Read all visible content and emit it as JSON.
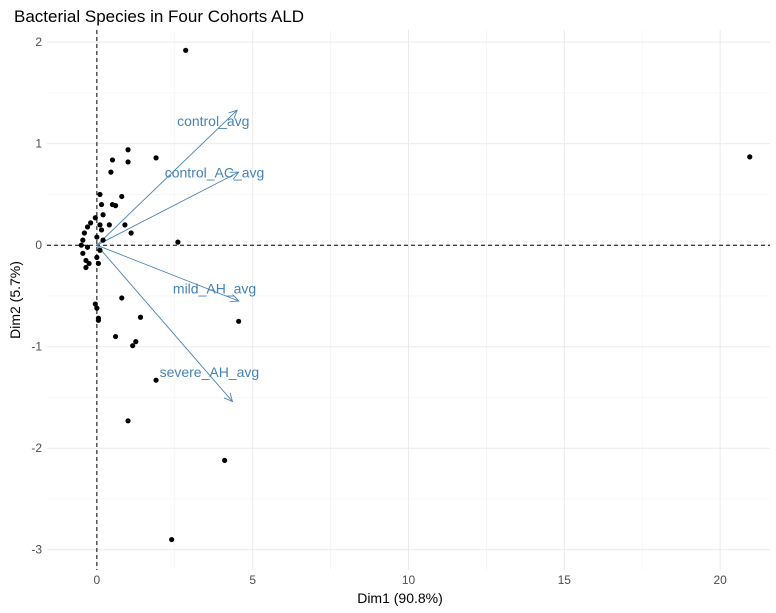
{
  "chart_data": {
    "type": "scatter",
    "title": "Bacterial Species in Four Cohorts ALD",
    "xlabel": "Dim1 (90.8%)",
    "ylabel": "Dim2 (5.7%)",
    "xlim": [
      -1.6,
      21.6
    ],
    "ylim": [
      -3.2,
      2.12
    ],
    "x_ticks": [
      0,
      5,
      10,
      15,
      20
    ],
    "y_ticks": [
      -3,
      -2,
      -1,
      0,
      1,
      2
    ],
    "grid": true,
    "reference_lines": {
      "x": 0,
      "y": 0
    },
    "points_color": "#000000",
    "vector_color": "#4682b4",
    "points": [
      [
        2.85,
        1.92
      ],
      [
        1.0,
        0.94
      ],
      [
        0.5,
        0.84
      ],
      [
        1.9,
        0.86
      ],
      [
        1.0,
        0.82
      ],
      [
        20.95,
        0.87
      ],
      [
        0.45,
        0.72
      ],
      [
        0.1,
        0.5
      ],
      [
        0.8,
        0.48
      ],
      [
        0.15,
        0.4
      ],
      [
        0.5,
        0.4
      ],
      [
        0.6,
        0.39
      ],
      [
        0.2,
        0.3
      ],
      [
        -0.05,
        0.27
      ],
      [
        0.4,
        0.2
      ],
      [
        0.9,
        0.2
      ],
      [
        -0.2,
        0.22
      ],
      [
        0.1,
        0.2
      ],
      [
        0.15,
        0.15
      ],
      [
        1.1,
        0.12
      ],
      [
        -0.3,
        0.18
      ],
      [
        -0.4,
        0.12
      ],
      [
        0.0,
        0.08
      ],
      [
        -0.45,
        0.05
      ],
      [
        0.2,
        0.05
      ],
      [
        2.6,
        0.03
      ],
      [
        -0.5,
        0.0
      ],
      [
        -0.3,
        -0.02
      ],
      [
        0.1,
        -0.05
      ],
      [
        -0.45,
        -0.08
      ],
      [
        -0.35,
        -0.15
      ],
      [
        0.0,
        -0.12
      ],
      [
        -0.25,
        -0.18
      ],
      [
        -0.35,
        -0.22
      ],
      [
        0.05,
        -0.18
      ],
      [
        -0.05,
        -0.58
      ],
      [
        0.0,
        -0.62
      ],
      [
        0.8,
        -0.52
      ],
      [
        0.05,
        -0.72
      ],
      [
        0.05,
        -0.74
      ],
      [
        1.4,
        -0.71
      ],
      [
        4.55,
        -0.75
      ],
      [
        0.6,
        -0.9
      ],
      [
        1.25,
        -0.95
      ],
      [
        1.15,
        -0.99
      ],
      [
        1.9,
        -1.33
      ],
      [
        1.0,
        -1.73
      ],
      [
        4.1,
        -2.12
      ],
      [
        2.4,
        -2.9
      ]
    ],
    "vectors": [
      {
        "name": "control_avg",
        "x": 4.5,
        "y": 1.33
      },
      {
        "name": "control_AC_avg",
        "x": 4.55,
        "y": 0.72
      },
      {
        "name": "mild_AH_avg",
        "x": 4.55,
        "y": -0.55
      },
      {
        "name": "severe_AH_avg",
        "x": 4.35,
        "y": -1.54
      }
    ]
  }
}
